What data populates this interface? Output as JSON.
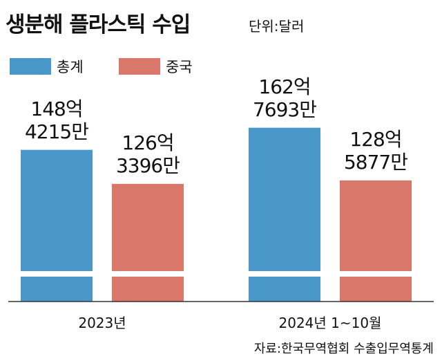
{
  "chart_data": {
    "type": "bar",
    "title": "생분해 플라스틱 수입",
    "unit": "단위:달러",
    "categories": [
      "2023년",
      "2024년 1~10월"
    ],
    "series": [
      {
        "name": "총계",
        "color": "#4a98c9",
        "values": [
          14842150000,
          16276930000
        ],
        "value_labels": [
          "148억\n4215만",
          "162억\n7693만"
        ]
      },
      {
        "name": "중국",
        "color": "#d9776a",
        "values": [
          12633960000,
          12858770000
        ],
        "value_labels": [
          "126억\n3396만",
          "128억\n5877만"
        ]
      }
    ],
    "ylim": [
      5000000000,
      19000000000
    ],
    "source": "자료:한국무역협회 수출입무역통계"
  }
}
